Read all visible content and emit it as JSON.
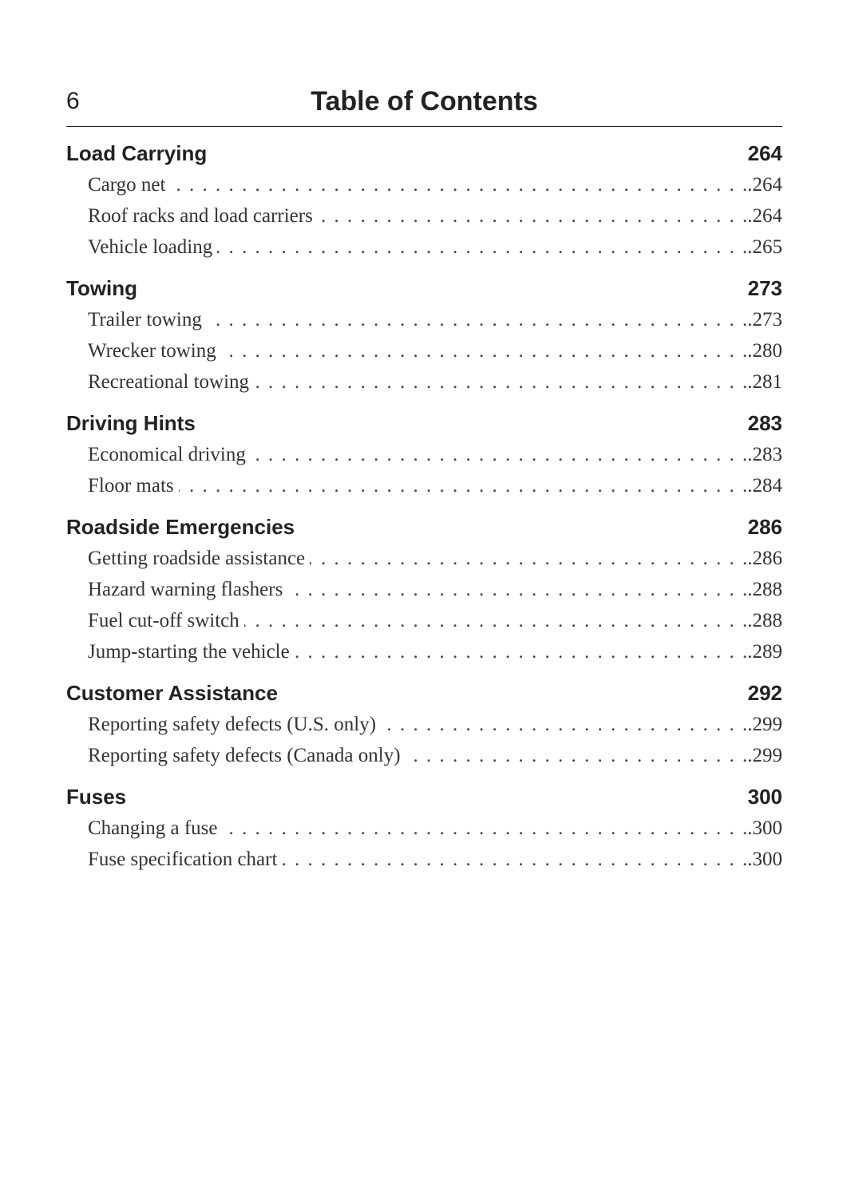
{
  "header": {
    "page_number": "6",
    "title": "Table of Contents"
  },
  "sections": [
    {
      "title": "Load Carrying",
      "page": "264",
      "entries": [
        {
          "label": "Cargo net",
          "page": ".264"
        },
        {
          "label": "Roof racks and load carriers",
          "page": ".264"
        },
        {
          "label": "Vehicle loading",
          "page": ".265"
        }
      ]
    },
    {
      "title": "Towing",
      "page": "273",
      "entries": [
        {
          "label": "Trailer towing",
          "page": ".273"
        },
        {
          "label": "Wrecker towing",
          "page": ".280"
        },
        {
          "label": "Recreational towing",
          "page": ".281"
        }
      ]
    },
    {
      "title": "Driving Hints",
      "page": "283",
      "entries": [
        {
          "label": "Economical driving",
          "page": ".283"
        },
        {
          "label": "Floor mats",
          "page": ".284"
        }
      ]
    },
    {
      "title": "Roadside Emergencies",
      "page": "286",
      "entries": [
        {
          "label": "Getting roadside assistance",
          "page": ".286"
        },
        {
          "label": "Hazard warning flashers",
          "page": ".288"
        },
        {
          "label": "Fuel cut-off switch",
          "page": ".288"
        },
        {
          "label": "Jump-starting the vehicle",
          "page": ".289"
        }
      ]
    },
    {
      "title": "Customer Assistance",
      "page": "292",
      "entries": [
        {
          "label": "Reporting safety defects (U.S. only)",
          "page": ".299"
        },
        {
          "label": "Reporting safety defects (Canada only)",
          "page": ".299"
        }
      ]
    },
    {
      "title": "Fuses",
      "page": "300",
      "entries": [
        {
          "label": "Changing a fuse",
          "page": ".300"
        },
        {
          "label": "Fuse specification chart",
          "page": ".300"
        }
      ]
    }
  ]
}
